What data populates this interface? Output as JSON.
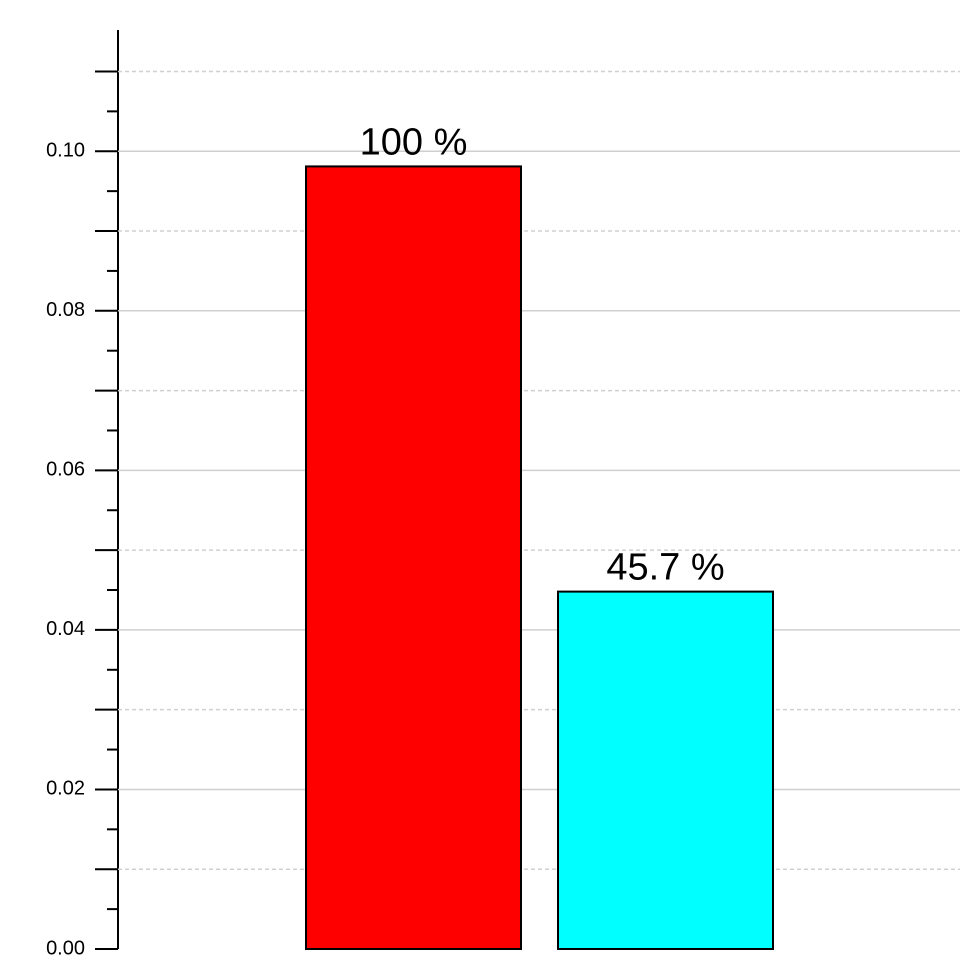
{
  "chart_data": {
    "type": "bar",
    "categories": [
      null,
      null
    ],
    "values": [
      0.0981,
      0.0448
    ],
    "colors": [
      "#ff0000",
      "#00ffff"
    ],
    "annotations": [
      "100 %",
      "45.7 %"
    ],
    "ylim": [
      0,
      0.1152
    ],
    "yticks": [
      {
        "value": 0,
        "label": "0.00"
      },
      {
        "value": 0.02,
        "label": "0.02"
      },
      {
        "value": 0.04,
        "label": "0.04"
      },
      {
        "value": 0.06,
        "label": "0.06"
      },
      {
        "value": 0.08,
        "label": "0.08"
      },
      {
        "value": 0.1,
        "label": "0.10"
      }
    ],
    "minor_yticks": [
      0.01,
      0.03,
      0.05,
      0.07,
      0.09,
      0.11
    ],
    "sub_yticks": [
      0.005,
      0.015,
      0.025,
      0.035,
      0.045,
      0.055,
      0.065,
      0.075,
      0.085,
      0.095,
      0.105
    ],
    "grid": true
  }
}
